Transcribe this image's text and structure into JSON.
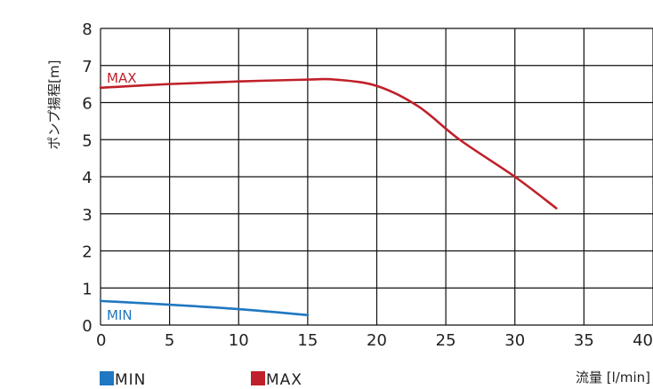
{
  "chart_data": {
    "type": "line",
    "xlabel": "流量 [l/min]",
    "ylabel": "ポンプ揚程[m]",
    "xlim": [
      0,
      40
    ],
    "ylim": [
      0,
      8
    ],
    "x_ticks": [
      "0",
      "5",
      "10",
      "15",
      "20",
      "25",
      "30",
      "35",
      "40"
    ],
    "y_ticks": [
      "0",
      "1",
      "2",
      "3",
      "4",
      "5",
      "6",
      "7",
      "8"
    ],
    "grid": true,
    "legend_position": "bottom",
    "series": [
      {
        "name": "MIN",
        "color": "#1f78c1",
        "x": [
          0,
          5,
          10,
          15
        ],
        "y": [
          0.65,
          0.55,
          0.43,
          0.27
        ]
      },
      {
        "name": "MAX",
        "color": "#c0202a",
        "x": [
          0,
          5,
          10,
          15,
          17,
          20,
          23,
          26,
          30,
          33
        ],
        "y": [
          6.4,
          6.5,
          6.57,
          6.62,
          6.62,
          6.45,
          5.9,
          5.0,
          4.0,
          3.15
        ]
      }
    ]
  }
}
